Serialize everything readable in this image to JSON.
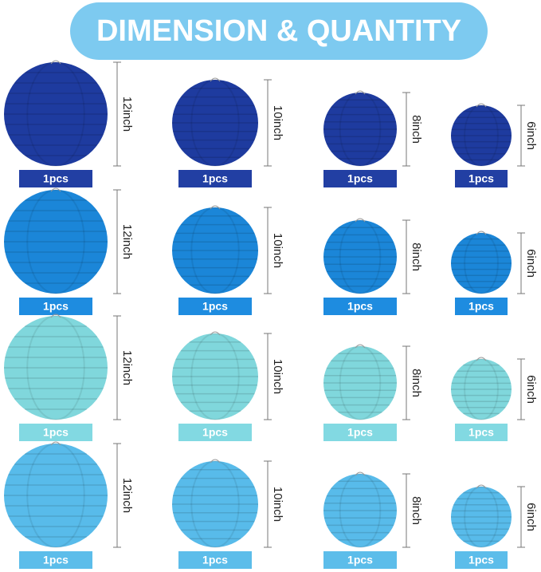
{
  "header": {
    "title": "DIMENSION & QUANTITY"
  },
  "rows": [
    {
      "lantern_color": "#1e3b9f",
      "label_color": "#223fa3",
      "items": [
        {
          "size": "12inch",
          "quantity": "1pcs"
        },
        {
          "size": "10inch",
          "quantity": "1pcs"
        },
        {
          "size": "8inch",
          "quantity": "1pcs"
        },
        {
          "size": "6inch",
          "quantity": "1pcs"
        }
      ]
    },
    {
      "lantern_color": "#1b86d8",
      "label_color": "#1e8ce0",
      "items": [
        {
          "size": "12inch",
          "quantity": "1pcs"
        },
        {
          "size": "10inch",
          "quantity": "1pcs"
        },
        {
          "size": "8inch",
          "quantity": "1pcs"
        },
        {
          "size": "6inch",
          "quantity": "1pcs"
        }
      ]
    },
    {
      "lantern_color": "#80d7dc",
      "label_color": "#82d9e2",
      "items": [
        {
          "size": "12inch",
          "quantity": "1pcs"
        },
        {
          "size": "10inch",
          "quantity": "1pcs"
        },
        {
          "size": "8inch",
          "quantity": "1pcs"
        },
        {
          "size": "6inch",
          "quantity": "1pcs"
        }
      ]
    },
    {
      "lantern_color": "#58bbea",
      "label_color": "#5cbdea",
      "items": [
        {
          "size": "12inch",
          "quantity": "1pcs"
        },
        {
          "size": "10inch",
          "quantity": "1pcs"
        },
        {
          "size": "8inch",
          "quantity": "1pcs"
        },
        {
          "size": "6inch",
          "quantity": "1pcs"
        }
      ]
    }
  ]
}
